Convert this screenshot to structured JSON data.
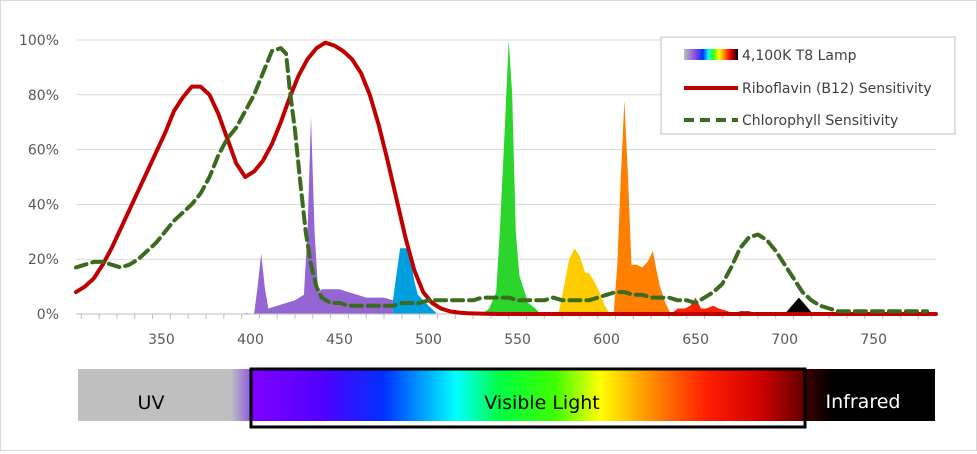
{
  "chart_data": {
    "type": "area",
    "title": "",
    "xlabel": "",
    "ylabel": "",
    "xlim": [
      302,
      785
    ],
    "ylim": [
      0,
      100
    ],
    "x_ticks": [
      350,
      400,
      450,
      500,
      550,
      600,
      650,
      700,
      750
    ],
    "y_ticks": [
      0,
      20,
      40,
      60,
      80,
      100
    ],
    "y_tick_labels": [
      "0%",
      "20%",
      "40%",
      "60%",
      "80%",
      "100%"
    ],
    "grid": "horizontal",
    "legend_position": "top-right",
    "legend": [
      {
        "label": "4,100K T8 Lamp",
        "style": "spectrum-swatch"
      },
      {
        "label": "Riboflavin (B12) Sensitivity",
        "style": "solid",
        "color": "#c00000"
      },
      {
        "label": "Chlorophyll Sensitivity",
        "style": "dashed",
        "color": "#3a6b1f"
      }
    ],
    "series": [
      {
        "name": "4,100K T8 Lamp",
        "kind": "area",
        "segments": [
          {
            "color": "#b9a9d9",
            "points": [
              [
                395,
                0
              ],
              [
                398,
                0.5
              ],
              [
                400,
                0
              ]
            ]
          },
          {
            "color": "#9466d4",
            "points": [
              [
                402,
                0
              ],
              [
                404,
                10
              ],
              [
                406,
                22
              ],
              [
                408,
                10
              ],
              [
                410,
                2
              ],
              [
                415,
                3
              ],
              [
                425,
                5
              ],
              [
                430,
                7
              ],
              [
                432,
                30
              ],
              [
                434,
                72
              ],
              [
                436,
                30
              ],
              [
                438,
                8
              ],
              [
                440,
                9
              ],
              [
                442,
                9
              ],
              [
                445,
                9
              ],
              [
                450,
                9
              ],
              [
                455,
                8
              ],
              [
                460,
                7
              ],
              [
                465,
                6
              ],
              [
                470,
                6
              ],
              [
                475,
                6
              ],
              [
                480,
                5
              ]
            ]
          },
          {
            "color": "#00a0e0",
            "points": [
              [
                480,
                5
              ],
              [
                484,
                24
              ],
              [
                488,
                24
              ],
              [
                490,
                20
              ],
              [
                492,
                12
              ],
              [
                494,
                7
              ],
              [
                497,
                5
              ],
              [
                500,
                3
              ],
              [
                505,
                0
              ]
            ]
          },
          {
            "color": "#2bd52b",
            "points": [
              [
                530,
                0
              ],
              [
                534,
                2
              ],
              [
                538,
                8
              ],
              [
                540,
                30
              ],
              [
                543,
                70
              ],
              [
                545,
                100
              ],
              [
                547,
                80
              ],
              [
                549,
                30
              ],
              [
                551,
                14
              ],
              [
                554,
                8
              ],
              [
                556,
                4
              ],
              [
                560,
                2
              ],
              [
                563,
                0
              ]
            ]
          },
          {
            "color": "#ffcc00",
            "points": [
              [
                573,
                0
              ],
              [
                576,
                10
              ],
              [
                579,
                20
              ],
              [
                582,
                24
              ],
              [
                585,
                21
              ],
              [
                588,
                15
              ],
              [
                590,
                15
              ],
              [
                593,
                12
              ],
              [
                596,
                8
              ],
              [
                599,
                3
              ],
              [
                602,
                0
              ]
            ]
          },
          {
            "color": "#ff8000",
            "points": [
              [
                604,
                0
              ],
              [
                606,
                18
              ],
              [
                608,
                50
              ],
              [
                610,
                78
              ],
              [
                612,
                50
              ],
              [
                614,
                18
              ],
              [
                617,
                18
              ],
              [
                620,
                17
              ],
              [
                623,
                19
              ],
              [
                626,
                23
              ],
              [
                628,
                16
              ],
              [
                630,
                10
              ],
              [
                633,
                4
              ],
              [
                636,
                0
              ]
            ]
          },
          {
            "color": "#ff2000",
            "points": [
              [
                636,
                0
              ],
              [
                640,
                2
              ],
              [
                644,
                2
              ],
              [
                647,
                3
              ],
              [
                650,
                6
              ],
              [
                653,
                2
              ],
              [
                656,
                2
              ],
              [
                660,
                3
              ],
              [
                663,
                2
              ],
              [
                668,
                1
              ],
              [
                672,
                0
              ]
            ]
          },
          {
            "color": "#8b0000",
            "points": [
              [
                672,
                0
              ],
              [
                675,
                1
              ],
              [
                680,
                1
              ],
              [
                685,
                0
              ]
            ]
          },
          {
            "color": "#000000",
            "points": [
              [
                700,
                0
              ],
              [
                704,
                3
              ],
              [
                708,
                6
              ],
              [
                712,
                3
              ],
              [
                716,
                0
              ]
            ]
          }
        ]
      },
      {
        "name": "Riboflavin (B12) Sensitivity",
        "kind": "line",
        "color": "#c00000",
        "x": [
          302,
          307,
          312,
          317,
          322,
          327,
          332,
          337,
          342,
          347,
          352,
          357,
          362,
          367,
          372,
          377,
          382,
          387,
          392,
          397,
          402,
          407,
          412,
          417,
          422,
          427,
          432,
          437,
          442,
          447,
          452,
          457,
          462,
          467,
          472,
          477,
          482,
          487,
          492,
          497,
          502,
          507,
          512,
          517,
          522,
          527,
          532,
          540,
          560,
          600,
          650,
          700,
          750,
          785
        ],
        "values": [
          8,
          10,
          13,
          18,
          24,
          31,
          38,
          45,
          52,
          59,
          66,
          74,
          79,
          83,
          83,
          80,
          73,
          64,
          55,
          50,
          52,
          56,
          62,
          70,
          79,
          87,
          93,
          97,
          99,
          98,
          96,
          93,
          88,
          80,
          69,
          56,
          42,
          28,
          16,
          8,
          4,
          2,
          1,
          0.5,
          0.3,
          0.2,
          0.1,
          0,
          0,
          0,
          0,
          0,
          0,
          0
        ]
      },
      {
        "name": "Chlorophyll Sensitivity",
        "kind": "line",
        "dashed": true,
        "color": "#3a6b1f",
        "x": [
          302,
          307,
          312,
          317,
          322,
          327,
          332,
          337,
          342,
          347,
          352,
          357,
          362,
          367,
          372,
          377,
          382,
          387,
          392,
          397,
          402,
          407,
          412,
          417,
          420,
          422,
          425,
          428,
          431,
          434,
          437,
          440,
          445,
          450,
          455,
          460,
          465,
          470,
          475,
          480,
          485,
          490,
          495,
          500,
          505,
          510,
          515,
          520,
          525,
          530,
          535,
          540,
          545,
          550,
          555,
          560,
          565,
          570,
          575,
          580,
          585,
          590,
          595,
          600,
          605,
          610,
          615,
          620,
          625,
          630,
          635,
          640,
          645,
          650,
          655,
          660,
          665,
          670,
          675,
          680,
          685,
          690,
          695,
          700,
          705,
          710,
          715,
          720,
          725,
          730,
          735,
          740,
          745,
          750,
          755,
          760,
          765,
          770,
          775,
          780
        ],
        "values": [
          17,
          18,
          19,
          19,
          18,
          17,
          18,
          20,
          23,
          26,
          30,
          34,
          37,
          40,
          44,
          50,
          58,
          64,
          68,
          74,
          80,
          88,
          96,
          97,
          95,
          82,
          67,
          48,
          30,
          18,
          10,
          6,
          4,
          4,
          3,
          3,
          3,
          3,
          3,
          3,
          4,
          4,
          4,
          5,
          5,
          5,
          5,
          5,
          5,
          6,
          6,
          6,
          6,
          5,
          5,
          5,
          5,
          6,
          5,
          5,
          5,
          5,
          6,
          7,
          8,
          8,
          7,
          7,
          6,
          6,
          6,
          5,
          5,
          4,
          6,
          8,
          11,
          17,
          24,
          28,
          29,
          27,
          23,
          18,
          13,
          8,
          5,
          3,
          2,
          1,
          1,
          1,
          1,
          1,
          1,
          1,
          1,
          1,
          1,
          1
        ]
      }
    ]
  },
  "spectrum_bar": {
    "uv_label": "UV",
    "visible_label": "Visible Light",
    "infrared_label": "Infrared"
  }
}
